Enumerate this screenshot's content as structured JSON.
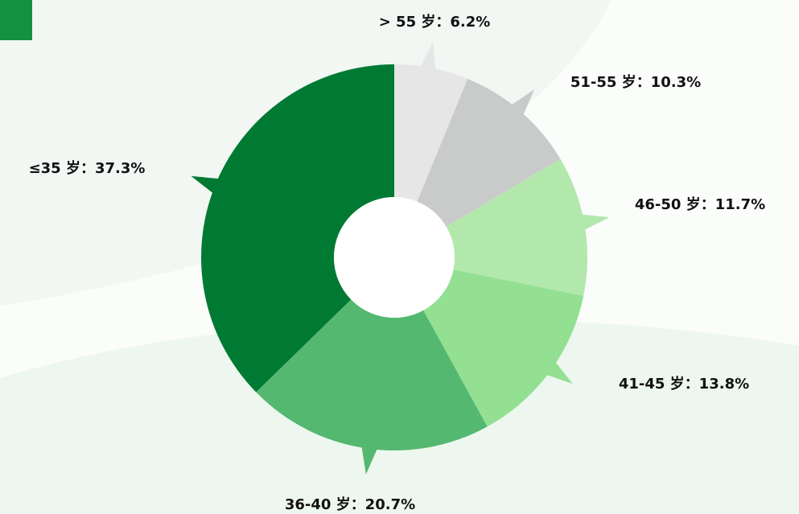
{
  "chart_data": {
    "type": "donut",
    "categories": [
      "> 55 岁",
      "51-55 岁",
      "46-50 岁",
      "41-45 岁",
      "36-40 岁",
      "≤35 岁"
    ],
    "values": [
      6.2,
      10.3,
      11.7,
      13.8,
      20.7,
      37.3
    ],
    "value_labels": [
      "：6.2%",
      "：10.3%",
      "：11.7%",
      "：13.8%",
      "：20.7%",
      "：37.3%"
    ],
    "colors": [
      "#e6e6e6",
      "#c9cbca",
      "#b3e8ad",
      "#93e093",
      "#55b870",
      "#007a33"
    ]
  }
}
